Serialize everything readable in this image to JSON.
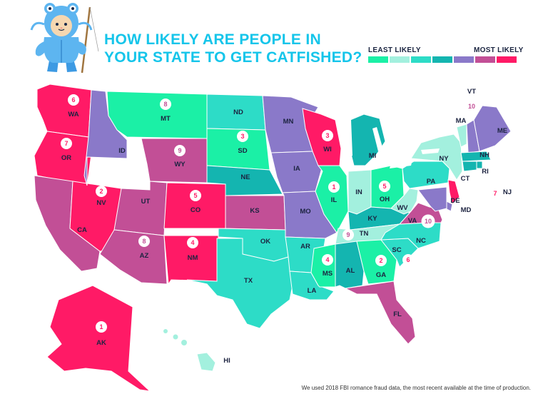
{
  "title": {
    "line1": "HOW LIKELY ARE PEOPLE IN",
    "line2": "YOUR STATE TO GET CATFISHED?"
  },
  "legend": {
    "least_label": "LEAST LIKELY",
    "most_label": "MOST LIKELY",
    "colors": [
      "#1bf0a6",
      "#a3f0de",
      "#2ddcc7",
      "#14b5b0",
      "#8a79c9",
      "#c24f96",
      "#ff1a66"
    ]
  },
  "footnote": "We used 2018 FBI romance fraud data, the most recent available at the time of production.",
  "rank_colors": {
    "1": "#ff1a66",
    "2": "#ff1a66",
    "3": "#ff1a66",
    "4": "#ff1a66",
    "5": "#ff1a66",
    "6": "#ff1a66",
    "7": "#ff1a66",
    "8": "#c24f96",
    "9": "#c24f96",
    "10": "#c24f96"
  },
  "states": [
    {
      "abbr": "WA",
      "tier": 6,
      "rank": "6"
    },
    {
      "abbr": "OR",
      "tier": 6,
      "rank": "7"
    },
    {
      "abbr": "CA",
      "tier": 5
    },
    {
      "abbr": "NV",
      "tier": 6,
      "rank": "2"
    },
    {
      "abbr": "ID",
      "tier": 4
    },
    {
      "abbr": "MT",
      "tier": 0,
      "rank": "8"
    },
    {
      "abbr": "WY",
      "tier": 5,
      "rank": "9"
    },
    {
      "abbr": "UT",
      "tier": 5
    },
    {
      "abbr": "AZ",
      "tier": 5,
      "rank": "8"
    },
    {
      "abbr": "CO",
      "tier": 6,
      "rank": "5"
    },
    {
      "abbr": "NM",
      "tier": 6,
      "rank": "4"
    },
    {
      "abbr": "ND",
      "tier": 2
    },
    {
      "abbr": "SD",
      "tier": 0,
      "rank": "3"
    },
    {
      "abbr": "NE",
      "tier": 3
    },
    {
      "abbr": "KS",
      "tier": 5
    },
    {
      "abbr": "OK",
      "tier": 2
    },
    {
      "abbr": "TX",
      "tier": 2
    },
    {
      "abbr": "MN",
      "tier": 4
    },
    {
      "abbr": "IA",
      "tier": 4
    },
    {
      "abbr": "MO",
      "tier": 4
    },
    {
      "abbr": "AR",
      "tier": 2
    },
    {
      "abbr": "LA",
      "tier": 2
    },
    {
      "abbr": "WI",
      "tier": 6,
      "rank": "3"
    },
    {
      "abbr": "IL",
      "tier": 0,
      "rank": "1"
    },
    {
      "abbr": "MI",
      "tier": 3
    },
    {
      "abbr": "IN",
      "tier": 1
    },
    {
      "abbr": "OH",
      "tier": 0,
      "rank": "5"
    },
    {
      "abbr": "KY",
      "tier": 3
    },
    {
      "abbr": "TN",
      "tier": 1,
      "rank": "9"
    },
    {
      "abbr": "MS",
      "tier": 0,
      "rank": "4"
    },
    {
      "abbr": "AL",
      "tier": 3
    },
    {
      "abbr": "GA",
      "tier": 0,
      "rank": "2"
    },
    {
      "abbr": "FL",
      "tier": 5
    },
    {
      "abbr": "SC",
      "tier": 2,
      "rank": "6"
    },
    {
      "abbr": "NC",
      "tier": 2
    },
    {
      "abbr": "VA",
      "tier": 5,
      "rank": "10"
    },
    {
      "abbr": "WV",
      "tier": 1
    },
    {
      "abbr": "PA",
      "tier": 2
    },
    {
      "abbr": "NY",
      "tier": 1
    },
    {
      "abbr": "VT",
      "tier": 1,
      "rank": "10"
    },
    {
      "abbr": "NH",
      "tier": 4
    },
    {
      "abbr": "ME",
      "tier": 4
    },
    {
      "abbr": "MA",
      "tier": 3
    },
    {
      "abbr": "RI",
      "tier": 3
    },
    {
      "abbr": "CT",
      "tier": 3
    },
    {
      "abbr": "NJ",
      "tier": 6,
      "rank": "7"
    },
    {
      "abbr": "DE",
      "tier": 4
    },
    {
      "abbr": "MD",
      "tier": 4
    },
    {
      "abbr": "AK",
      "tier": 6,
      "rank": "1"
    },
    {
      "abbr": "HI",
      "tier": 1
    }
  ]
}
